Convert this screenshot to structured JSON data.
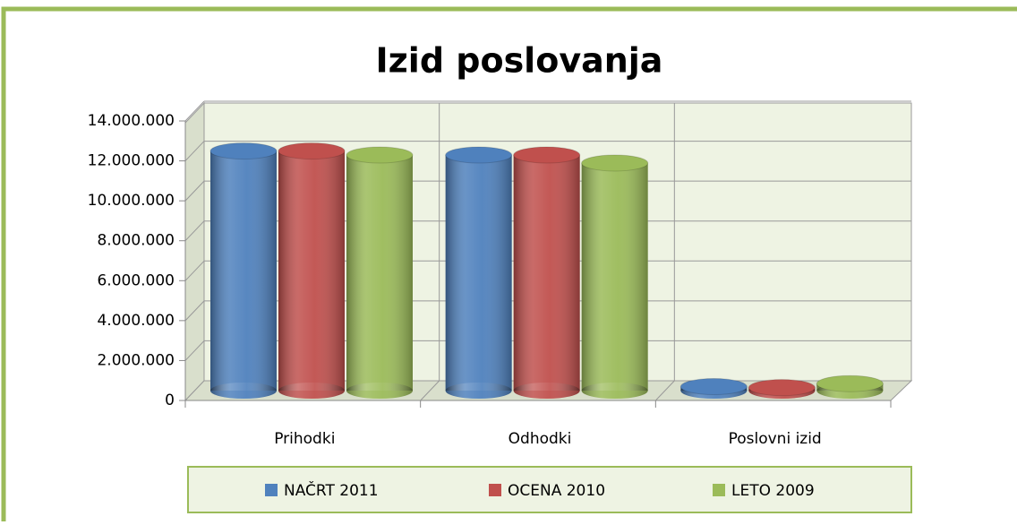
{
  "chart_data": {
    "type": "bar3d",
    "title": "Izid poslovanja",
    "categories": [
      "Prihodki",
      "Odhodki",
      "Poslovni izid"
    ],
    "series": [
      {
        "name": "NAČRT 2011",
        "color": "#4f81bd",
        "values": [
          12000000,
          11800000,
          200000
        ]
      },
      {
        "name": "OCENA 2010",
        "color": "#c0504d",
        "values": [
          12000000,
          11800000,
          150000
        ]
      },
      {
        "name": "LETO 2009",
        "color": "#9bbb59",
        "values": [
          11800000,
          11400000,
          350000
        ]
      }
    ],
    "ylim": [
      0,
      14000000
    ],
    "yticks": [
      0,
      {
        "value": 2000000,
        "label": "2.000.000"
      },
      {
        "value": 4000000,
        "label": "4.000.000"
      },
      {
        "value": 6000000,
        "label": "6.000.000"
      },
      {
        "value": 8000000,
        "label": "8.000.000"
      },
      {
        "value": 10000000,
        "label": "10.000.000"
      },
      {
        "value": 12000000,
        "label": "12.000.000"
      },
      {
        "value": 14000000,
        "label": "14.000.000"
      }
    ],
    "grid": true,
    "legend": "bottom"
  }
}
